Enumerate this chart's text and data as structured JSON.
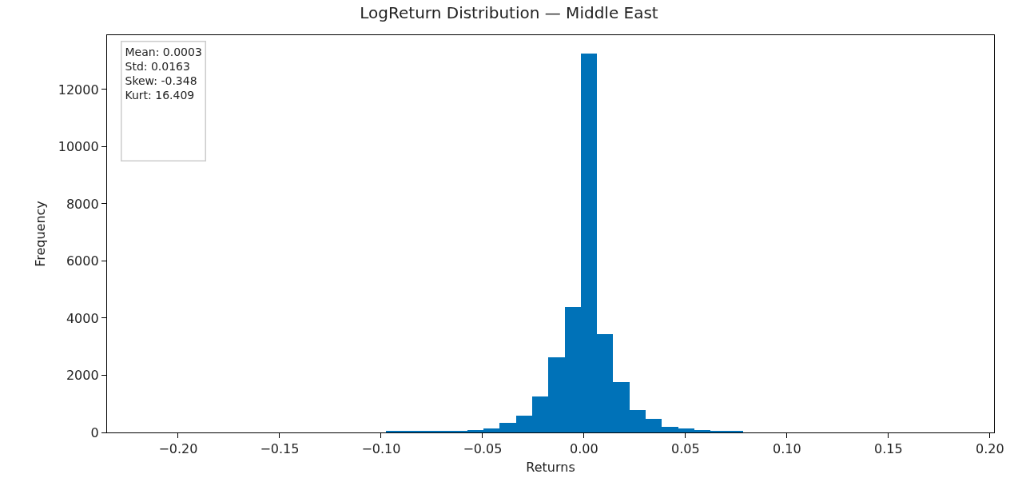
{
  "chart_data": {
    "type": "histogram",
    "title": "LogReturn Distribution — Middle East",
    "xlabel": "Returns",
    "ylabel": "Frequency",
    "bins": [
      -0.0976,
      -0.0896,
      -0.0816,
      -0.0736,
      -0.0656,
      -0.0576,
      -0.0496,
      -0.0416,
      -0.0336,
      -0.0256,
      -0.0176,
      -0.0096,
      -0.0016,
      0.0064,
      0.0144,
      0.0224,
      0.0304,
      0.0384,
      0.0464,
      0.0544,
      0.0624,
      0.0704,
      0.0784
    ],
    "values": [
      40,
      30,
      30,
      40,
      50,
      80,
      150,
      330,
      590,
      1250,
      2620,
      4400,
      13250,
      3450,
      1770,
      780,
      470,
      200,
      150,
      90,
      40,
      40
    ],
    "color": "#0072b8",
    "xlim": [
      -0.235,
      0.202
    ],
    "xticks": [
      {
        "value": -0.2,
        "label": "−0.20"
      },
      {
        "value": -0.15,
        "label": "−0.15"
      },
      {
        "value": -0.1,
        "label": "−0.10"
      },
      {
        "value": -0.05,
        "label": "−0.05"
      },
      {
        "value": 0,
        "label": "0.00"
      },
      {
        "value": 0.05,
        "label": "0.05"
      },
      {
        "value": 0.1,
        "label": "0.10"
      },
      {
        "value": 0.15,
        "label": "0.15"
      },
      {
        "value": 0.2,
        "label": "0.20"
      }
    ],
    "ylim": [
      0,
      13900
    ],
    "yticks": [
      0,
      2000,
      4000,
      6000,
      8000,
      10000,
      12000
    ],
    "grid": false,
    "legend": false,
    "annotations": [
      "Mean: 0.0003\nStd: 0.0163\nSkew: -0.348\nKurt: 16.409"
    ]
  }
}
